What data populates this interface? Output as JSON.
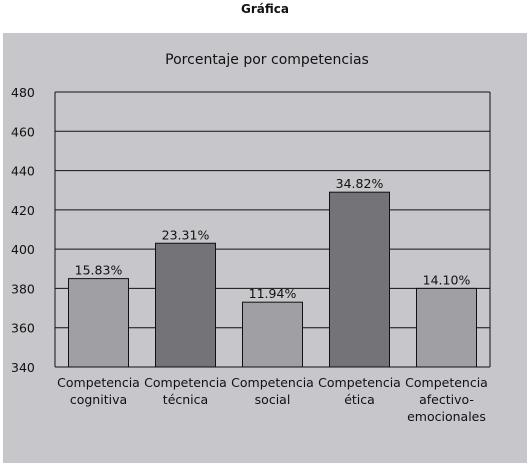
{
  "page": {
    "heading": "Gráfica"
  },
  "chart_data": {
    "type": "bar",
    "title": "Porcentaje por competencias",
    "xlabel": "",
    "ylabel": "",
    "ylim": [
      340,
      480
    ],
    "yticks": [
      340,
      360,
      380,
      400,
      420,
      440,
      460,
      480
    ],
    "grid": true,
    "legend": "none",
    "categories": [
      [
        "Competencia",
        "cognitiva"
      ],
      [
        "Competencia",
        "técnica"
      ],
      [
        "Competencia",
        "social"
      ],
      [
        "Competencia",
        "ética"
      ],
      [
        "Competencia",
        "afectivo-",
        "emocionales"
      ]
    ],
    "values": [
      385,
      403,
      373,
      429,
      380
    ],
    "data_labels": [
      "15.83%",
      "23.31%",
      "11.94%",
      "34.82%",
      "14.10%"
    ],
    "colors": {
      "background": "#c7c6cb",
      "bar_light": "#a09fa4",
      "bar_dark": "#747378"
    },
    "bar_colors": [
      "#a09fa4",
      "#747378",
      "#a09fa4",
      "#747378",
      "#a09fa4"
    ]
  }
}
